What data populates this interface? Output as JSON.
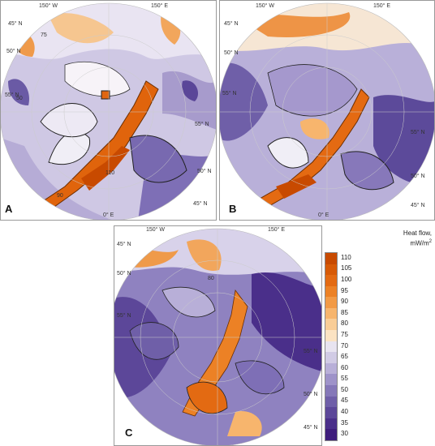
{
  "panels": {
    "a": {
      "label": "A",
      "lon_top_left": "150° W",
      "lon_top_right": "150° E",
      "lon_bottom": "0° E",
      "lat_labels": [
        "45° N",
        "50° N",
        "55° N",
        "55° N",
        "50° N",
        "45° N"
      ],
      "contours": [
        "75",
        "50",
        "110",
        "90"
      ]
    },
    "b": {
      "label": "B",
      "lon_top_left": "150° W",
      "lon_top_right": "150° E",
      "lon_bottom": "0° E",
      "lat_labels": [
        "45° N",
        "50° N",
        "55° N",
        "55° N",
        "50° N",
        "45° N"
      ]
    },
    "c": {
      "label": "C",
      "lon_top_left": "150° W",
      "lon_top_right": "150° E",
      "lat_labels": [
        "45° N",
        "50° N",
        "55° N",
        "55° N",
        "50° N",
        "45° N"
      ],
      "contours": [
        "80"
      ]
    }
  },
  "legend": {
    "title_line1": "Heat flow,",
    "title_line2": "mW/m",
    "title_sup": "2",
    "levels": [
      "110",
      "105",
      "100",
      "95",
      "90",
      "85",
      "80",
      "75",
      "70",
      "65",
      "60",
      "55",
      "50",
      "45",
      "40",
      "35",
      "30"
    ],
    "colors": [
      "#c84a00",
      "#d75a06",
      "#e36a12",
      "#ec8125",
      "#f29a45",
      "#f7b56d",
      "#f9cd97",
      "#fbe3c3",
      "#e8e4f0",
      "#d1cbe5",
      "#b8afd8",
      "#9e93c9",
      "#8578b8",
      "#6f5fa8",
      "#5c4799",
      "#4a2f8a",
      "#3e1d7c"
    ]
  }
}
